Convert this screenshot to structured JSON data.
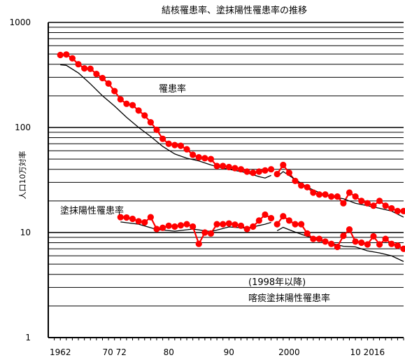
{
  "chart_data": {
    "type": "line",
    "title": "結核罹患率、塗抹陽性罹患率の推移",
    "ylabel": "人口10万対率",
    "yscale": "log",
    "ylim": [
      1,
      1000
    ],
    "y_tick_labels": [
      "1000",
      "100",
      "10",
      "1"
    ],
    "xlim": [
      1960,
      2019
    ],
    "x_tick_labels": [
      "1962",
      "70 72",
      "80",
      "90",
      "2000",
      "10  2016"
    ],
    "grid": true,
    "annotations": [
      "罹患率",
      "塗抹陽性罹患率",
      "(1998年以降)",
      "喀痰塗抹陽性罹患率"
    ],
    "series": [
      {
        "name": "罹患率",
        "style": "red-dots",
        "segments": [
          {
            "x": [
              1962,
              1963,
              1964,
              1965,
              1966,
              1967,
              1968,
              1969,
              1970,
              1971,
              1972,
              1973,
              1974,
              1975,
              1976,
              1977,
              1978,
              1979,
              1980,
              1981,
              1982,
              1983,
              1984,
              1985,
              1986,
              1987,
              1988,
              1989,
              1990,
              1991,
              1992,
              1993,
              1994,
              1995,
              1996,
              1997
            ],
            "y": [
              490,
              495,
              455,
              400,
              365,
              362,
              323,
              295,
              262,
              222,
              185,
              168,
              163,
              145,
              130,
              112,
              95,
              78,
              70,
              68,
              67,
              62,
              55,
              52,
              51,
              50,
              43,
              43,
              42,
              41,
              40,
              38,
              37,
              38,
              39,
              40
            ]
          },
          {
            "x": [
              1998,
              1999,
              2000,
              2001,
              2002,
              2003,
              2004,
              2005,
              2006,
              2007,
              2008,
              2009,
              2010,
              2011,
              2012,
              2013,
              2014,
              2015,
              2016,
              2017,
              2018,
              2019
            ],
            "y": [
              36,
              44,
              37,
              31,
              28,
              27,
              24,
              23,
              23,
              22,
              22,
              19,
              24,
              22,
              20,
              19,
              18,
              20,
              18,
              17,
              16,
              16
            ]
          }
        ]
      },
      {
        "name": "罹患率-black",
        "style": "black-line",
        "segments": [
          {
            "x": [
              1962,
              1963,
              1965,
              1967,
              1969,
              1971,
              1973,
              1975,
              1977,
              1979,
              1981,
              1983,
              1985,
              1987,
              1989,
              1991,
              1993,
              1995,
              1996,
              1997
            ],
            "y": [
              395,
              390,
              330,
              260,
              200,
              160,
              125,
              100,
              82,
              66,
              56,
              51,
              48,
              44,
              41,
              39,
              37,
              34,
              33,
              35
            ]
          },
          {
            "x": [
              1998,
              1999,
              2001,
              2003,
              2005,
              2007,
              2009,
              2011,
              2013,
              2015,
              2017,
              2019
            ],
            "y": [
              34,
              38,
              32,
              27,
              24,
              22,
              21,
              19,
              18,
              17,
              16,
              14
            ]
          }
        ]
      },
      {
        "name": "塗抹陽性罹患率",
        "style": "red-dots",
        "segments": [
          {
            "x": [
              1972,
              1973,
              1974,
              1975,
              1976,
              1977,
              1978,
              1979,
              1980,
              1981,
              1982,
              1983,
              1984,
              1985,
              1986,
              1987,
              1988,
              1989,
              1990,
              1991,
              1992,
              1993,
              1994,
              1995,
              1996,
              1997
            ],
            "y": [
              14.0,
              13.9,
              13.5,
              12.8,
              12.5,
              14.0,
              10.8,
              11.1,
              11.6,
              11.4,
              11.7,
              12.0,
              11.4,
              7.8,
              10.0,
              9.8,
              12.0,
              12.0,
              12.2,
              11.9,
              11.6,
              10.8,
              11.4,
              13.0,
              14.8,
              13.7
            ]
          },
          {
            "x": [
              1998,
              1999,
              2000,
              2001,
              2002,
              2003,
              2004,
              2005,
              2006,
              2007,
              2008,
              2009,
              2010,
              2011,
              2012,
              2013,
              2014,
              2015,
              2016,
              2017,
              2018,
              2019
            ],
            "y": [
              12.0,
              14.3,
              13.0,
              12.0,
              12.0,
              9.8,
              8.7,
              8.7,
              8.2,
              7.8,
              7.3,
              9.3,
              10.7,
              8.2,
              8.0,
              7.7,
              9.2,
              7.7,
              8.7,
              7.8,
              7.5,
              7.0
            ]
          }
        ]
      },
      {
        "name": "喀痰塗抹陽性罹患率",
        "style": "black-line",
        "segments": [
          {
            "x": [
              1972,
              1975,
              1978,
              1981,
              1984,
              1987,
              1990,
              1993,
              1996,
              1997
            ],
            "y": [
              12.6,
              12.0,
              10.7,
              10.3,
              10.8,
              10.2,
              11.3,
              11.0,
              12.0,
              12.5
            ]
          },
          {
            "x": [
              1998,
              1999,
              2001,
              2003,
              2005,
              2007,
              2009,
              2011,
              2013,
              2015,
              2017,
              2019
            ],
            "y": [
              10.4,
              11.2,
              10.1,
              9.2,
              8.3,
              7.9,
              7.4,
              7.3,
              6.7,
              6.4,
              6.0,
              5.3
            ]
          }
        ]
      }
    ]
  }
}
